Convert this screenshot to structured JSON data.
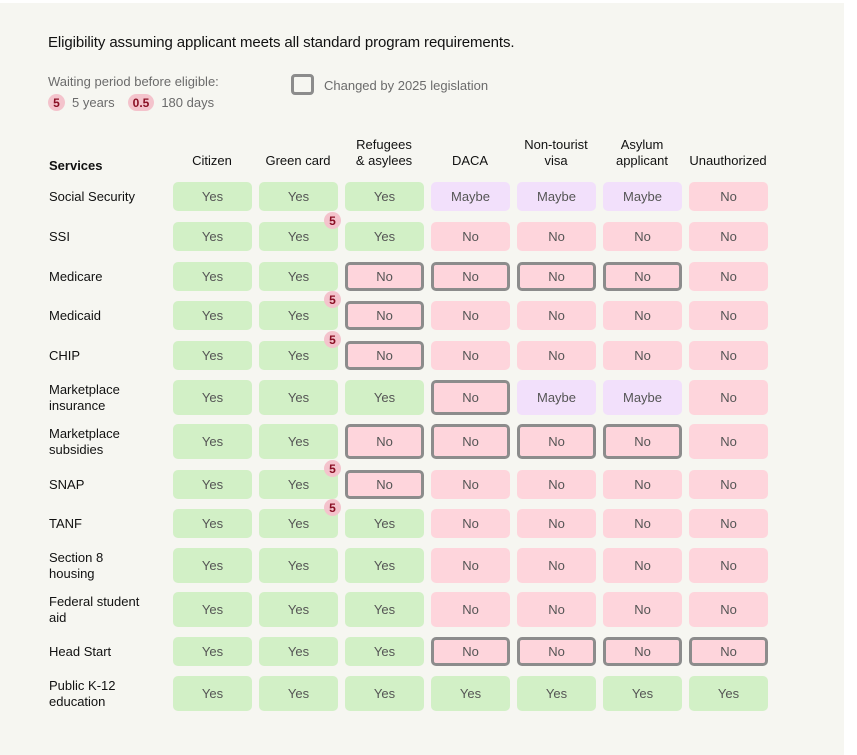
{
  "title": "Eligibility assuming applicant meets all standard program requirements.",
  "legend": {
    "waiting_label": "Waiting period before eligible:",
    "items": [
      {
        "badge": "5",
        "label": "5 years"
      },
      {
        "badge": "0.5",
        "label": "180 days"
      }
    ],
    "changed_label": "Changed by 2025 legislation"
  },
  "colors": {
    "yes": "#d2f0c6",
    "no": "#fed5dc",
    "maybe": "#f2e0fb",
    "changed_border": "#8c8c8c",
    "badge_bg": "#f4c3cc",
    "badge_text": "#8a0f24"
  },
  "table": {
    "services_header": "Services",
    "columns": [
      "Citizen",
      "Green card",
      "Refugees\n& asylees",
      "DACA",
      "Non-tourist\nvisa",
      "Asylum\napplicant",
      "Unauthorized"
    ],
    "rows": [
      {
        "service": "Social Security",
        "cells": [
          {
            "v": "Yes"
          },
          {
            "v": "Yes"
          },
          {
            "v": "Yes"
          },
          {
            "v": "Maybe"
          },
          {
            "v": "Maybe"
          },
          {
            "v": "Maybe"
          },
          {
            "v": "No"
          }
        ]
      },
      {
        "service": "SSI",
        "cells": [
          {
            "v": "Yes"
          },
          {
            "v": "Yes",
            "wait": "5"
          },
          {
            "v": "Yes"
          },
          {
            "v": "No"
          },
          {
            "v": "No"
          },
          {
            "v": "No"
          },
          {
            "v": "No"
          }
        ]
      },
      {
        "service": "Medicare",
        "cells": [
          {
            "v": "Yes"
          },
          {
            "v": "Yes"
          },
          {
            "v": "No",
            "changed": true
          },
          {
            "v": "No",
            "changed": true
          },
          {
            "v": "No",
            "changed": true
          },
          {
            "v": "No",
            "changed": true
          },
          {
            "v": "No"
          }
        ]
      },
      {
        "service": "Medicaid",
        "cells": [
          {
            "v": "Yes"
          },
          {
            "v": "Yes",
            "wait": "5"
          },
          {
            "v": "No",
            "changed": true
          },
          {
            "v": "No"
          },
          {
            "v": "No"
          },
          {
            "v": "No"
          },
          {
            "v": "No"
          }
        ]
      },
      {
        "service": "CHIP",
        "cells": [
          {
            "v": "Yes"
          },
          {
            "v": "Yes",
            "wait": "5"
          },
          {
            "v": "No",
            "changed": true
          },
          {
            "v": "No"
          },
          {
            "v": "No"
          },
          {
            "v": "No"
          },
          {
            "v": "No"
          }
        ]
      },
      {
        "service": "Marketplace\ninsurance",
        "cells": [
          {
            "v": "Yes"
          },
          {
            "v": "Yes"
          },
          {
            "v": "Yes"
          },
          {
            "v": "No",
            "changed": true
          },
          {
            "v": "Maybe"
          },
          {
            "v": "Maybe"
          },
          {
            "v": "No"
          }
        ]
      },
      {
        "service": "Marketplace\nsubsidies",
        "cells": [
          {
            "v": "Yes"
          },
          {
            "v": "Yes"
          },
          {
            "v": "No",
            "changed": true
          },
          {
            "v": "No",
            "changed": true
          },
          {
            "v": "No",
            "changed": true
          },
          {
            "v": "No",
            "changed": true
          },
          {
            "v": "No"
          }
        ]
      },
      {
        "service": "SNAP",
        "cells": [
          {
            "v": "Yes"
          },
          {
            "v": "Yes",
            "wait": "5"
          },
          {
            "v": "No",
            "changed": true
          },
          {
            "v": "No"
          },
          {
            "v": "No"
          },
          {
            "v": "No"
          },
          {
            "v": "No"
          }
        ]
      },
      {
        "service": "TANF",
        "cells": [
          {
            "v": "Yes"
          },
          {
            "v": "Yes",
            "wait": "5"
          },
          {
            "v": "Yes"
          },
          {
            "v": "No"
          },
          {
            "v": "No"
          },
          {
            "v": "No"
          },
          {
            "v": "No"
          }
        ]
      },
      {
        "service": "Section 8\nhousing",
        "cells": [
          {
            "v": "Yes"
          },
          {
            "v": "Yes"
          },
          {
            "v": "Yes"
          },
          {
            "v": "No"
          },
          {
            "v": "No"
          },
          {
            "v": "No"
          },
          {
            "v": "No"
          }
        ]
      },
      {
        "service": "Federal student\naid",
        "cells": [
          {
            "v": "Yes"
          },
          {
            "v": "Yes"
          },
          {
            "v": "Yes"
          },
          {
            "v": "No"
          },
          {
            "v": "No"
          },
          {
            "v": "No"
          },
          {
            "v": "No"
          }
        ]
      },
      {
        "service": "Head Start",
        "cells": [
          {
            "v": "Yes"
          },
          {
            "v": "Yes"
          },
          {
            "v": "Yes"
          },
          {
            "v": "No",
            "changed": true
          },
          {
            "v": "No",
            "changed": true
          },
          {
            "v": "No",
            "changed": true
          },
          {
            "v": "No",
            "changed": true
          }
        ]
      },
      {
        "service": "Public K-12\neducation",
        "cells": [
          {
            "v": "Yes"
          },
          {
            "v": "Yes"
          },
          {
            "v": "Yes"
          },
          {
            "v": "Yes"
          },
          {
            "v": "Yes"
          },
          {
            "v": "Yes"
          },
          {
            "v": "Yes"
          }
        ]
      }
    ]
  }
}
